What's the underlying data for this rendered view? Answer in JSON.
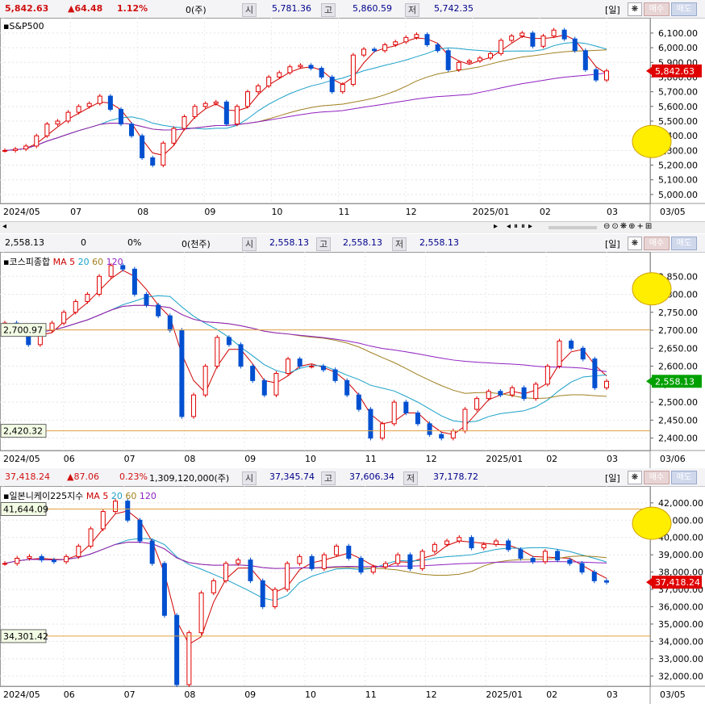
{
  "panel1": {
    "header": {
      "price": "5,842.63",
      "change": "▲64.48",
      "pct": "1.12%",
      "volume": "0(주)",
      "open_label": "시",
      "open": "5,781.36",
      "high_label": "고",
      "high": "5,860.59",
      "low_label": "저",
      "low": "5,742.35",
      "period": "일"
    },
    "buttons": {
      "buy": "매수",
      "sell": "매도",
      "settings": "❋"
    },
    "title": "S&P500",
    "legend": [],
    "last_label": "5,842.63",
    "y_ticks": [
      "6,100.00",
      "6,000.00",
      "5,900.00",
      "5,800.00",
      "5,700.00",
      "5,600.00",
      "5,500.00",
      "5,400.00",
      "5,300.00",
      "5,200.00",
      "5,100.00",
      "5,000.00"
    ],
    "x_ticks": [
      "2024/05",
      "07",
      "08",
      "09",
      "10",
      "11",
      "12",
      "2025/01",
      "02",
      "03"
    ],
    "x_end": "03/05"
  },
  "panel2": {
    "header": {
      "price": "2,558.13",
      "change": "0",
      "pct": "0%",
      "volume": "0(천주)",
      "open_label": "시",
      "open": "2,558.13",
      "high_label": "고",
      "high": "2,558.13",
      "low_label": "저",
      "low": "2,558.13",
      "period": "일"
    },
    "buttons": {
      "buy": "매수",
      "sell": "매도",
      "settings": "❋"
    },
    "title": "코스피종합",
    "legend": [
      "MA",
      "5",
      "20",
      "60",
      "120"
    ],
    "last_label": "2,558.13",
    "left_labels": [
      "2,700.97",
      "2,420.32"
    ],
    "y_ticks": [
      "2,850.00",
      "2,800.00",
      "2,750.00",
      "2,700.00",
      "2,650.00",
      "2,600.00",
      "2,550.00",
      "2,500.00",
      "2,450.00",
      "2,400.00"
    ],
    "x_ticks": [
      "2024/05",
      "06",
      "07",
      "08",
      "09",
      "10",
      "11",
      "12",
      "2025/01",
      "02",
      "03"
    ],
    "x_end": "03/06"
  },
  "panel3": {
    "header": {
      "price": "37,418.24",
      "change": "▲87.06",
      "pct": "0.23%",
      "volume": "1,309,120,000(주)",
      "open_label": "시",
      "open": "37,345.74",
      "high_label": "고",
      "high": "37,606.34",
      "low_label": "저",
      "low": "37,178.72",
      "period": "일"
    },
    "buttons": {
      "buy": "매수",
      "sell": "매도",
      "settings": "❋"
    },
    "title": "일본니케이225지수",
    "legend": [
      "MA",
      "5",
      "20",
      "60",
      "120"
    ],
    "last_label": "37,418.24",
    "left_labels": [
      "41,644.09",
      "34,301.42"
    ],
    "y_ticks": [
      "42,000.00",
      "41,000.00",
      "40,000.00",
      "39,000.00",
      "38,000.00",
      "37,000.00",
      "36,000.00",
      "35,000.00",
      "34,000.00",
      "33,000.00",
      "32,000.00"
    ],
    "x_ticks": [
      "2024/05",
      "06",
      "07",
      "08",
      "09",
      "10",
      "11",
      "12",
      "2025/01",
      "02",
      "03"
    ],
    "x_end": "03/05"
  },
  "chart_data": [
    {
      "type": "line",
      "title": "S&P500",
      "ylim": [
        4950,
        6160
      ],
      "series": [
        {
          "values": [
            5300,
            5310,
            5330,
            5400,
            5480,
            5500,
            5560,
            5600,
            5620,
            5670,
            5580,
            5480,
            5400,
            5250,
            5200,
            5350,
            5450,
            5530,
            5600,
            5620,
            5630,
            5480,
            5600,
            5700,
            5740,
            5800,
            5830,
            5870,
            5880,
            5860,
            5800,
            5700,
            5750,
            5950,
            5990,
            5980,
            6020,
            6040,
            6070,
            6090,
            6020,
            5980,
            5850,
            5900,
            5910,
            5930,
            5960,
            6050,
            6080,
            6100,
            6010,
            6080,
            6120,
            6060,
            5980,
            5850,
            5780,
            5842
          ]
        }
      ]
    },
    {
      "type": "line",
      "title": "코스피종합",
      "ylim": [
        2370,
        2900
      ],
      "series": [
        {
          "values": [
            2720,
            2700,
            2660,
            2700,
            2720,
            2750,
            2780,
            2800,
            2850,
            2880,
            2870,
            2800,
            2770,
            2740,
            2700,
            2460,
            2520,
            2600,
            2680,
            2660,
            2600,
            2560,
            2520,
            2580,
            2620,
            2600,
            2600,
            2590,
            2560,
            2520,
            2480,
            2400,
            2440,
            2500,
            2470,
            2440,
            2410,
            2400,
            2420,
            2480,
            2510,
            2530,
            2520,
            2540,
            2510,
            2550,
            2600,
            2670,
            2650,
            2620,
            2540,
            2558
          ]
        }
      ]
    },
    {
      "type": "line",
      "title": "일본니케이225지수",
      "ylim": [
        31500,
        42600
      ],
      "series": [
        {
          "values": [
            38500,
            38800,
            38900,
            38700,
            38600,
            38900,
            39500,
            40500,
            41500,
            42100,
            41000,
            39800,
            38500,
            35500,
            31500,
            34500,
            36800,
            37500,
            38500,
            38700,
            37500,
            36000,
            37000,
            38500,
            38900,
            38200,
            39000,
            39500,
            38800,
            38000,
            38300,
            38500,
            39000,
            38200,
            39200,
            39600,
            39800,
            40000,
            39400,
            39600,
            39800,
            39300,
            38800,
            38600,
            39200,
            38700,
            38500,
            38000,
            37500,
            37418
          ]
        }
      ]
    }
  ]
}
